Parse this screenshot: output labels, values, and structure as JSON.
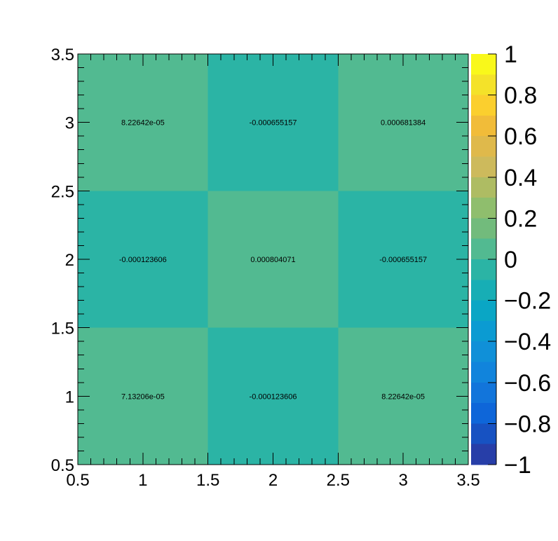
{
  "chart_data": {
    "type": "heatmap",
    "title": "",
    "xlabel": "",
    "ylabel": "",
    "xlim": [
      0.5,
      3.5
    ],
    "ylim": [
      0.5,
      3.5
    ],
    "x_ticks": [
      "0.5",
      "1",
      "1.5",
      "2",
      "2.5",
      "3",
      "3.5"
    ],
    "y_ticks": [
      "0.5",
      "1",
      "1.5",
      "2",
      "2.5",
      "3",
      "3.5"
    ],
    "x": [
      1,
      2,
      3
    ],
    "y": [
      1,
      2,
      3
    ],
    "cells": [
      {
        "x": 1,
        "y": 1,
        "value": 7.13206e-05,
        "label": "7.13206e-05"
      },
      {
        "x": 2,
        "y": 1,
        "value": -0.000123606,
        "label": "-0.000123606"
      },
      {
        "x": 3,
        "y": 1,
        "value": 8.22642e-05,
        "label": "8.22642e-05"
      },
      {
        "x": 1,
        "y": 2,
        "value": -0.000123606,
        "label": "-0.000123606"
      },
      {
        "x": 2,
        "y": 2,
        "value": 0.000804071,
        "label": "0.000804071"
      },
      {
        "x": 3,
        "y": 2,
        "value": -0.000655157,
        "label": "-0.000655157"
      },
      {
        "x": 1,
        "y": 3,
        "value": 8.22642e-05,
        "label": "8.22642e-05"
      },
      {
        "x": 2,
        "y": 3,
        "value": -0.000655157,
        "label": "-0.000655157"
      },
      {
        "x": 3,
        "y": 3,
        "value": 0.000681384,
        "label": "0.000681384"
      }
    ],
    "colorbar": {
      "range": [
        -1,
        1
      ],
      "ticks": [
        "1",
        "0.8",
        "0.6",
        "0.4",
        "0.2",
        "0",
        "−0.2",
        "−0.4",
        "−0.6",
        "−0.8",
        "−1"
      ],
      "tick_values": [
        1,
        0.8,
        0.6,
        0.4,
        0.2,
        0,
        -0.2,
        -0.4,
        -0.6,
        -0.8,
        -1
      ],
      "colors_top_to_bottom": [
        "#f9f81a",
        "#f4e229",
        "#fbcf2e",
        "#f1bc39",
        "#dfb94b",
        "#cdba5c",
        "#aebc63",
        "#8fbe6d",
        "#72bb7c",
        "#52ba91",
        "#2bb4a5",
        "#17aeb5",
        "#0aa6c5",
        "#0b9bd2",
        "#1090d8",
        "#1184dc",
        "#1275db",
        "#0e66d9",
        "#1752c2",
        "#273ea8"
      ]
    }
  }
}
